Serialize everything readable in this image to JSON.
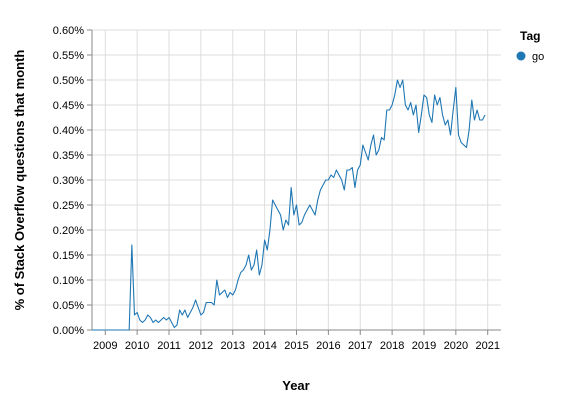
{
  "chart_data": {
    "type": "line",
    "xlabel": "Year",
    "ylabel": "% of Stack Overflow questions that month",
    "x_ticks": [
      "2009",
      "2010",
      "2011",
      "2012",
      "2013",
      "2014",
      "2015",
      "2016",
      "2017",
      "2018",
      "2019",
      "2020",
      "2021"
    ],
    "y_ticks": [
      "0.00%",
      "0.05%",
      "0.10%",
      "0.15%",
      "0.20%",
      "0.25%",
      "0.30%",
      "0.35%",
      "0.40%",
      "0.45%",
      "0.50%",
      "0.55%",
      "0.60%"
    ],
    "xlim": [
      "2008-08",
      "2021-06"
    ],
    "ylim": [
      0,
      0.6
    ],
    "grid": true,
    "legend": {
      "title": "Tag",
      "position": "right",
      "items": [
        {
          "label": "go",
          "color": "#1f77b4"
        }
      ]
    },
    "series": [
      {
        "name": "go",
        "color": "#1f77b4",
        "points": [
          [
            "2008-08",
            0.0
          ],
          [
            "2008-10",
            0.0
          ],
          [
            "2009-01",
            0.0
          ],
          [
            "2009-04",
            0.0
          ],
          [
            "2009-07",
            0.0
          ],
          [
            "2009-10",
            0.0
          ],
          [
            "2009-11",
            0.17
          ],
          [
            "2009-12",
            0.03
          ],
          [
            "2010-01",
            0.035
          ],
          [
            "2010-02",
            0.02
          ],
          [
            "2010-03",
            0.015
          ],
          [
            "2010-04",
            0.02
          ],
          [
            "2010-05",
            0.03
          ],
          [
            "2010-06",
            0.025
          ],
          [
            "2010-07",
            0.015
          ],
          [
            "2010-08",
            0.02
          ],
          [
            "2010-09",
            0.015
          ],
          [
            "2010-10",
            0.02
          ],
          [
            "2010-11",
            0.025
          ],
          [
            "2010-12",
            0.02
          ],
          [
            "2011-01",
            0.025
          ],
          [
            "2011-02",
            0.015
          ],
          [
            "2011-03",
            0.005
          ],
          [
            "2011-04",
            0.01
          ],
          [
            "2011-05",
            0.04
          ],
          [
            "2011-06",
            0.03
          ],
          [
            "2011-07",
            0.04
          ],
          [
            "2011-08",
            0.025
          ],
          [
            "2011-09",
            0.035
          ],
          [
            "2011-10",
            0.045
          ],
          [
            "2011-11",
            0.06
          ],
          [
            "2011-12",
            0.045
          ],
          [
            "2012-01",
            0.03
          ],
          [
            "2012-02",
            0.035
          ],
          [
            "2012-03",
            0.055
          ],
          [
            "2012-04",
            0.055
          ],
          [
            "2012-05",
            0.055
          ],
          [
            "2012-06",
            0.05
          ],
          [
            "2012-07",
            0.1
          ],
          [
            "2012-08",
            0.07
          ],
          [
            "2012-09",
            0.075
          ],
          [
            "2012-10",
            0.08
          ],
          [
            "2012-11",
            0.065
          ],
          [
            "2012-12",
            0.075
          ],
          [
            "2013-01",
            0.07
          ],
          [
            "2013-02",
            0.08
          ],
          [
            "2013-03",
            0.1
          ],
          [
            "2013-04",
            0.115
          ],
          [
            "2013-05",
            0.12
          ],
          [
            "2013-06",
            0.13
          ],
          [
            "2013-07",
            0.15
          ],
          [
            "2013-08",
            0.12
          ],
          [
            "2013-09",
            0.13
          ],
          [
            "2013-10",
            0.16
          ],
          [
            "2013-11",
            0.11
          ],
          [
            "2013-12",
            0.13
          ],
          [
            "2014-01",
            0.18
          ],
          [
            "2014-02",
            0.16
          ],
          [
            "2014-03",
            0.2
          ],
          [
            "2014-04",
            0.26
          ],
          [
            "2014-05",
            0.25
          ],
          [
            "2014-06",
            0.24
          ],
          [
            "2014-07",
            0.23
          ],
          [
            "2014-08",
            0.2
          ],
          [
            "2014-09",
            0.22
          ],
          [
            "2014-10",
            0.21
          ],
          [
            "2014-11",
            0.285
          ],
          [
            "2014-12",
            0.23
          ],
          [
            "2015-01",
            0.25
          ],
          [
            "2015-02",
            0.21
          ],
          [
            "2015-03",
            0.215
          ],
          [
            "2015-04",
            0.23
          ],
          [
            "2015-05",
            0.24
          ],
          [
            "2015-06",
            0.25
          ],
          [
            "2015-07",
            0.24
          ],
          [
            "2015-08",
            0.23
          ],
          [
            "2015-09",
            0.26
          ],
          [
            "2015-10",
            0.28
          ],
          [
            "2015-11",
            0.29
          ],
          [
            "2015-12",
            0.3
          ],
          [
            "2016-01",
            0.3
          ],
          [
            "2016-02",
            0.31
          ],
          [
            "2016-03",
            0.305
          ],
          [
            "2016-04",
            0.32
          ],
          [
            "2016-05",
            0.31
          ],
          [
            "2016-06",
            0.3
          ],
          [
            "2016-07",
            0.28
          ],
          [
            "2016-08",
            0.32
          ],
          [
            "2016-09",
            0.32
          ],
          [
            "2016-10",
            0.325
          ],
          [
            "2016-11",
            0.285
          ],
          [
            "2016-12",
            0.32
          ],
          [
            "2017-01",
            0.33
          ],
          [
            "2017-02",
            0.37
          ],
          [
            "2017-03",
            0.355
          ],
          [
            "2017-04",
            0.34
          ],
          [
            "2017-05",
            0.37
          ],
          [
            "2017-06",
            0.39
          ],
          [
            "2017-07",
            0.35
          ],
          [
            "2017-08",
            0.36
          ],
          [
            "2017-09",
            0.385
          ],
          [
            "2017-10",
            0.38
          ],
          [
            "2017-11",
            0.44
          ],
          [
            "2017-12",
            0.44
          ],
          [
            "2018-01",
            0.45
          ],
          [
            "2018-02",
            0.47
          ],
          [
            "2018-03",
            0.5
          ],
          [
            "2018-04",
            0.485
          ],
          [
            "2018-05",
            0.5
          ],
          [
            "2018-06",
            0.45
          ],
          [
            "2018-07",
            0.44
          ],
          [
            "2018-08",
            0.455
          ],
          [
            "2018-09",
            0.43
          ],
          [
            "2018-10",
            0.45
          ],
          [
            "2018-11",
            0.395
          ],
          [
            "2018-12",
            0.43
          ],
          [
            "2019-01",
            0.47
          ],
          [
            "2019-02",
            0.465
          ],
          [
            "2019-03",
            0.43
          ],
          [
            "2019-04",
            0.415
          ],
          [
            "2019-05",
            0.47
          ],
          [
            "2019-06",
            0.45
          ],
          [
            "2019-07",
            0.465
          ],
          [
            "2019-08",
            0.43
          ],
          [
            "2019-09",
            0.41
          ],
          [
            "2019-10",
            0.42
          ],
          [
            "2019-11",
            0.39
          ],
          [
            "2019-12",
            0.44
          ],
          [
            "2020-01",
            0.485
          ],
          [
            "2020-02",
            0.39
          ],
          [
            "2020-03",
            0.375
          ],
          [
            "2020-04",
            0.37
          ],
          [
            "2020-05",
            0.365
          ],
          [
            "2020-06",
            0.4
          ],
          [
            "2020-07",
            0.46
          ],
          [
            "2020-08",
            0.42
          ],
          [
            "2020-09",
            0.44
          ],
          [
            "2020-10",
            0.42
          ],
          [
            "2020-11",
            0.42
          ],
          [
            "2020-12",
            0.43
          ]
        ]
      }
    ]
  }
}
